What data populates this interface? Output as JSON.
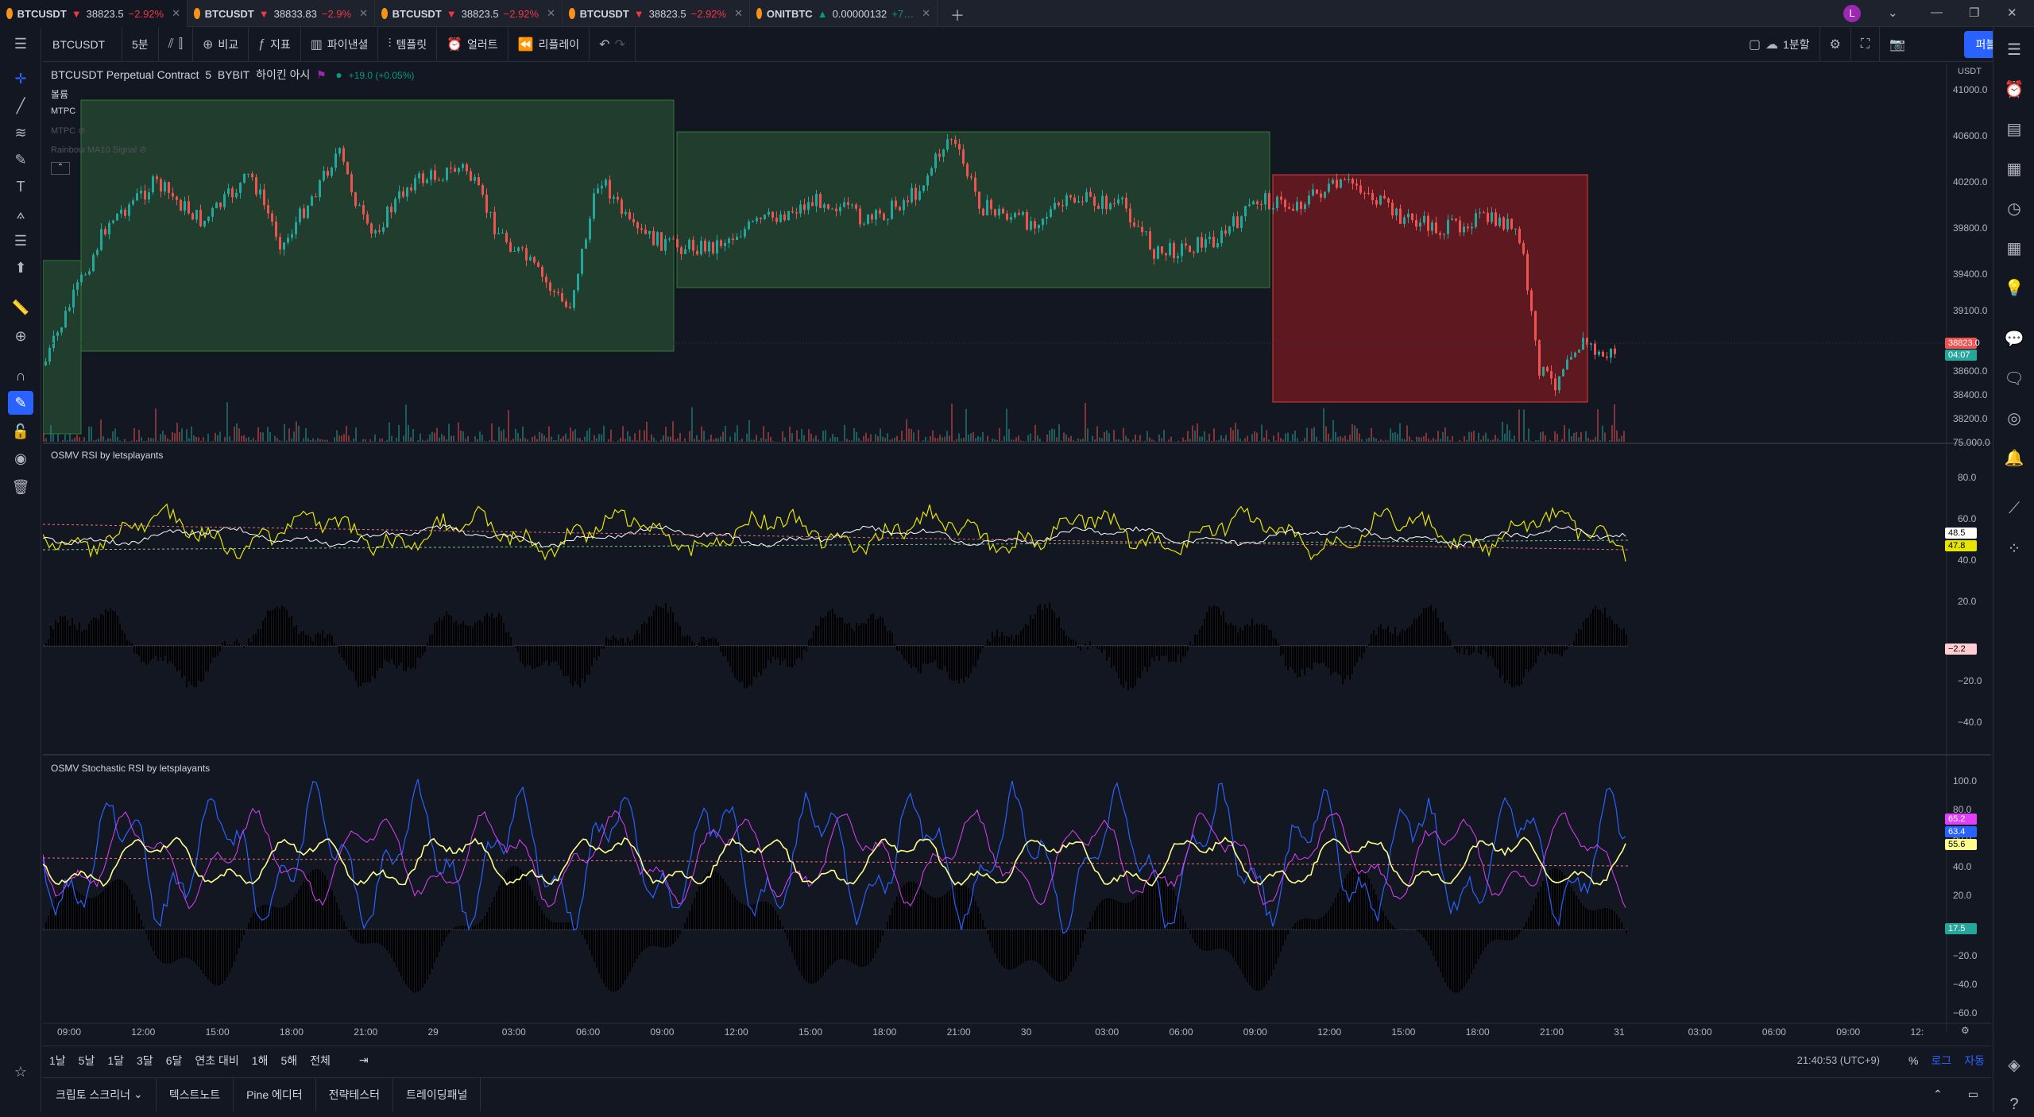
{
  "tabs": [
    {
      "symbol": "BTCUSDT",
      "arrow": "▼",
      "price": "38823.5",
      "change": "−2.92%",
      "active": true
    },
    {
      "symbol": "BTCUSDT",
      "arrow": "▼",
      "price": "38833.83",
      "change": "−2.9%",
      "active": false
    },
    {
      "symbol": "BTCUSDT",
      "arrow": "▼",
      "price": "38823.5",
      "change": "−2.92%",
      "active": false
    },
    {
      "symbol": "BTCUSDT",
      "arrow": "▼",
      "price": "38823.5",
      "change": "−2.92%",
      "active": false
    },
    {
      "symbol": "ONITBTC",
      "arrow": "▲",
      "price": "0.00000132",
      "change": "+7…",
      "active": false
    }
  ],
  "user_avatar": "L",
  "toolbar": {
    "symbol": "BTCUSDT",
    "interval": "5분",
    "compare": "비교",
    "indicators": "지표",
    "financials": "파이낸셜",
    "templates": "템플릿",
    "alert": "얼러트",
    "replay": "리플레이",
    "layout": "1분할",
    "publish": "퍼블리쉬"
  },
  "chart_title": {
    "name": "BTCUSDT Perpetual Contract",
    "interval": "5",
    "exchange": "BYBIT",
    "session": "하이킨 아시",
    "change": "+19.0 (+0.05%)",
    "sub1": "볼륨",
    "sub2": "MTPC",
    "sub3": "MTPC",
    "sub4": "Rainbow MA10 Signal"
  },
  "currency": "USDT",
  "pane2_title": "OSMV RSI by letsplayants",
  "pane3_title": "OSMV Stochastic RSI by letsplayants",
  "price_axis": [
    "41000.0",
    "40600.0",
    "40200.0",
    "39800.0",
    "39400.0",
    "39100.0",
    "38600.0",
    "38400.0",
    "38200.0",
    "75.000.0"
  ],
  "price_tags": {
    "last": "38823.0",
    "countdown": "04:07"
  },
  "rsi_axis": [
    "80.0",
    "60.0",
    "40.0",
    "20.0",
    "−20.0",
    "−40.0"
  ],
  "rsi_tags": [
    "48.5",
    "47.8",
    "−2.2"
  ],
  "srsi_axis": [
    "100.0",
    "80.0",
    "60.0",
    "40.0",
    "20.0",
    "−20.0",
    "−40.0",
    "−60.0"
  ],
  "srsi_tags": [
    "65.2",
    "63.4",
    "55.6",
    "17.5"
  ],
  "time_axis": [
    "09:00",
    "12:00",
    "15:00",
    "18:00",
    "21:00",
    "29",
    "03:00",
    "06:00",
    "09:00",
    "12:00",
    "15:00",
    "18:00",
    "21:00",
    "30",
    "03:00",
    "06:00",
    "09:00",
    "12:00",
    "15:00",
    "18:00",
    "21:00",
    "31",
    "03:00",
    "06:00",
    "09:00",
    "12:"
  ],
  "ranges": [
    "1날",
    "5날",
    "1달",
    "3달",
    "6달",
    "연초 대비",
    "1해",
    "5해",
    "전체"
  ],
  "clock": "21:40:53 (UTC+9)",
  "scale_opts": [
    "%",
    "로그",
    "자동"
  ],
  "panels": [
    "크립토 스크리너",
    "텍스트노트",
    "Pine 에디터",
    "전략테스터",
    "트레이딩패널"
  ],
  "colors": {
    "up": "#26a69a",
    "down": "#ef5350",
    "accent": "#2962ff",
    "bg": "#131722"
  }
}
